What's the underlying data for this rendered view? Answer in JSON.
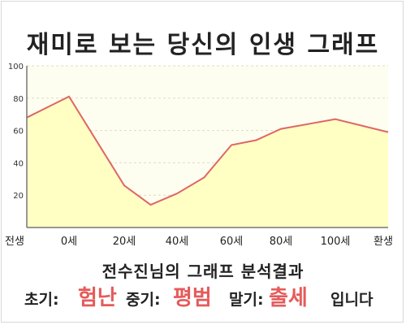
{
  "title": "재미로 보는 당신의 인생 그래프",
  "chart_data": {
    "type": "area",
    "x_tick_labels": [
      "전생",
      "0세",
      "20세",
      "40세",
      "60세",
      "80세",
      "100세",
      "환생"
    ],
    "y_ticks": [
      20,
      40,
      60,
      80,
      100
    ],
    "ylim": [
      0,
      100
    ],
    "grid": true,
    "points": [
      {
        "x": "전생",
        "y": 68
      },
      {
        "x": "0세",
        "y": 81
      },
      {
        "x": "20세",
        "y": 26
      },
      {
        "x": "30세",
        "y": 14
      },
      {
        "x": "40세",
        "y": 21
      },
      {
        "x": "50세",
        "y": 31
      },
      {
        "x": "60세",
        "y": 51
      },
      {
        "x": "70세",
        "y": 54
      },
      {
        "x": "80세",
        "y": 61
      },
      {
        "x": "100세",
        "y": 67
      },
      {
        "x": "환생",
        "y": 59
      }
    ],
    "colors": {
      "line": "#e06666",
      "fill": "#ffffc4",
      "plot_bg": "#fefef0"
    }
  },
  "result": {
    "heading": "전수진님의 그래프 분석결과",
    "early_label": "초기:",
    "early_value": "험난",
    "middle_label": "중기:",
    "middle_value": "평범",
    "late_label": "말기:",
    "late_value": "출세",
    "suffix": "입니다"
  }
}
